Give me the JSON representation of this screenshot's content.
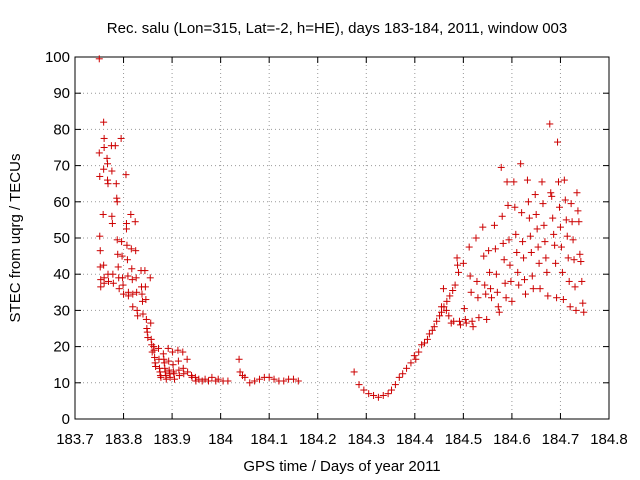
{
  "chart_data": {
    "type": "scatter",
    "title": "Rec. salu (Lon=315, Lat=-2, h=HE), days 183-184, 2011, window 003",
    "xlabel": "GPS time / Days of year 2011",
    "ylabel": "STEC from uqrg / TECUs",
    "xlim": [
      183.7,
      184.8
    ],
    "ylim": [
      0,
      100
    ],
    "xticks": [
      183.7,
      183.8,
      183.9,
      184,
      184.1,
      184.2,
      184.3,
      184.4,
      184.5,
      184.6,
      184.7,
      184.8
    ],
    "xtick_labels": [
      "183.7",
      "183.8",
      "183.9",
      "184",
      "184.1",
      "184.2",
      "184.3",
      "184.4",
      "184.5",
      "184.6",
      "184.7",
      "184.8"
    ],
    "yticks": [
      0,
      10,
      20,
      30,
      40,
      50,
      60,
      70,
      80,
      90,
      100
    ],
    "ytick_labels": [
      "0",
      "10",
      "20",
      "30",
      "40",
      "50",
      "60",
      "70",
      "80",
      "90",
      "100"
    ],
    "grid": true,
    "marker": "+",
    "color": "#cc0000",
    "series": [
      {
        "name": "STEC",
        "points": [
          [
            183.75,
            99.5
          ],
          [
            183.75,
            73.5
          ],
          [
            183.751,
            67.0
          ],
          [
            183.751,
            50.5
          ],
          [
            183.752,
            46.5
          ],
          [
            183.752,
            42.0
          ],
          [
            183.753,
            38.5
          ],
          [
            183.753,
            36.5
          ],
          [
            183.759,
            82.0
          ],
          [
            183.76,
            77.5
          ],
          [
            183.76,
            75.0
          ],
          [
            183.759,
            69.0
          ],
          [
            183.758,
            56.5
          ],
          [
            183.759,
            42.5
          ],
          [
            183.76,
            39.0
          ],
          [
            183.76,
            37.5
          ],
          [
            183.766,
            72.0
          ],
          [
            183.767,
            70.5
          ],
          [
            183.767,
            66.0
          ],
          [
            183.768,
            65.0
          ],
          [
            183.768,
            40.0
          ],
          [
            183.769,
            38.0
          ],
          [
            183.775,
            75.5
          ],
          [
            183.776,
            68.5
          ],
          [
            183.776,
            56.0
          ],
          [
            183.777,
            54.0
          ],
          [
            183.778,
            40.0
          ],
          [
            183.779,
            37.5
          ],
          [
            183.783,
            75.5
          ],
          [
            183.785,
            65.0
          ],
          [
            183.786,
            61.0
          ],
          [
            183.787,
            60.0
          ],
          [
            183.787,
            49.5
          ],
          [
            183.788,
            45.5
          ],
          [
            183.789,
            42.0
          ],
          [
            183.79,
            39.0
          ],
          [
            183.791,
            36.0
          ],
          [
            183.795,
            77.5
          ],
          [
            183.796,
            49.0
          ],
          [
            183.797,
            45.0
          ],
          [
            183.798,
            39.0
          ],
          [
            183.799,
            37.0
          ],
          [
            183.8,
            34.5
          ],
          [
            183.805,
            67.5
          ],
          [
            183.806,
            54.0
          ],
          [
            183.806,
            52.5
          ],
          [
            183.807,
            48.0
          ],
          [
            183.808,
            44.0
          ],
          [
            183.809,
            39.5
          ],
          [
            183.81,
            35.0
          ],
          [
            183.81,
            34.0
          ],
          [
            183.815,
            56.5
          ],
          [
            183.816,
            47.0
          ],
          [
            183.817,
            41.5
          ],
          [
            183.818,
            38.5
          ],
          [
            183.819,
            34.5
          ],
          [
            183.819,
            31.0
          ],
          [
            183.824,
            54.5
          ],
          [
            183.825,
            46.5
          ],
          [
            183.826,
            39.0
          ],
          [
            183.827,
            35.0
          ],
          [
            183.828,
            30.0
          ],
          [
            183.829,
            28.5
          ],
          [
            183.836,
            41.0
          ],
          [
            183.837,
            36.5
          ],
          [
            183.838,
            34.5
          ],
          [
            183.839,
            32.5
          ],
          [
            183.84,
            29.0
          ],
          [
            183.844,
            41.0
          ],
          [
            183.845,
            36.5
          ],
          [
            183.846,
            33.0
          ],
          [
            183.847,
            27.5
          ],
          [
            183.848,
            25.0
          ],
          [
            183.849,
            24.0
          ],
          [
            183.85,
            22.5
          ],
          [
            183.855,
            39.0
          ],
          [
            183.856,
            26.5
          ],
          [
            183.857,
            22.0
          ],
          [
            183.858,
            20.5
          ],
          [
            183.859,
            18.5
          ],
          [
            183.862,
            20.0
          ],
          [
            183.863,
            19.0
          ],
          [
            183.864,
            17.0
          ],
          [
            183.865,
            15.5
          ],
          [
            183.866,
            14.5
          ],
          [
            183.872,
            19.5
          ],
          [
            183.873,
            16.5
          ],
          [
            183.874,
            14.0
          ],
          [
            183.875,
            13.0
          ],
          [
            183.876,
            12.0
          ],
          [
            183.877,
            11.5
          ],
          [
            183.882,
            18.0
          ],
          [
            183.883,
            16.5
          ],
          [
            183.884,
            15.5
          ],
          [
            183.885,
            14.0
          ],
          [
            183.886,
            13.0
          ],
          [
            183.887,
            12.0
          ],
          [
            183.888,
            11.0
          ],
          [
            183.892,
            19.5
          ],
          [
            183.893,
            16.0
          ],
          [
            183.894,
            13.5
          ],
          [
            183.895,
            12.5
          ],
          [
            183.896,
            11.5
          ],
          [
            183.901,
            18.5
          ],
          [
            183.902,
            15.0
          ],
          [
            183.903,
            13.0
          ],
          [
            183.904,
            12.5
          ],
          [
            183.905,
            11.0
          ],
          [
            183.912,
            19.0
          ],
          [
            183.913,
            16.0
          ],
          [
            183.914,
            13.5
          ],
          [
            183.915,
            12.0
          ],
          [
            183.922,
            18.5
          ],
          [
            183.923,
            14.0
          ],
          [
            183.924,
            12.5
          ],
          [
            183.931,
            16.5
          ],
          [
            183.932,
            13.0
          ],
          [
            183.94,
            12.0
          ],
          [
            183.941,
            11.5
          ],
          [
            183.948,
            11.5
          ],
          [
            183.949,
            10.5
          ],
          [
            183.955,
            11.0
          ],
          [
            183.962,
            10.5
          ],
          [
            183.968,
            11.0
          ],
          [
            183.975,
            10.5
          ],
          [
            183.982,
            11.5
          ],
          [
            183.99,
            10.5
          ],
          [
            183.995,
            11.0
          ],
          [
            184.005,
            10.5
          ],
          [
            184.015,
            10.5
          ],
          [
            184.04,
            13.0
          ],
          [
            184.038,
            16.5
          ],
          [
            184.045,
            12.0
          ],
          [
            184.05,
            11.5
          ],
          [
            184.06,
            10.0
          ],
          [
            184.07,
            10.5
          ],
          [
            184.08,
            11.0
          ],
          [
            184.09,
            11.5
          ],
          [
            184.1,
            11.5
          ],
          [
            184.11,
            11.0
          ],
          [
            184.12,
            10.5
          ],
          [
            184.13,
            10.5
          ],
          [
            184.14,
            11.0
          ],
          [
            184.15,
            11.0
          ],
          [
            184.16,
            10.5
          ],
          [
            184.275,
            13.0
          ],
          [
            184.285,
            9.5
          ],
          [
            184.295,
            8.0
          ],
          [
            184.305,
            7.0
          ],
          [
            184.315,
            6.5
          ],
          [
            184.325,
            6.0
          ],
          [
            184.335,
            6.5
          ],
          [
            184.345,
            7.0
          ],
          [
            184.352,
            8.0
          ],
          [
            184.36,
            9.5
          ],
          [
            184.368,
            11.5
          ],
          [
            184.375,
            12.5
          ],
          [
            184.383,
            14.0
          ],
          [
            184.392,
            15.5
          ],
          [
            184.399,
            17.5
          ],
          [
            184.402,
            16.5
          ],
          [
            184.408,
            18.5
          ],
          [
            184.414,
            20.5
          ],
          [
            184.42,
            21.0
          ],
          [
            184.426,
            22.0
          ],
          [
            184.43,
            23.5
          ],
          [
            184.436,
            24.5
          ],
          [
            184.44,
            25.5
          ],
          [
            184.445,
            27.0
          ],
          [
            184.451,
            28.5
          ],
          [
            184.455,
            29.5
          ],
          [
            184.46,
            31.0
          ],
          [
            184.466,
            32.5
          ],
          [
            184.472,
            34.0
          ],
          [
            184.478,
            35.5
          ],
          [
            184.483,
            37.0
          ],
          [
            184.459,
            36.0
          ],
          [
            184.455,
            31.0
          ],
          [
            184.465,
            30.0
          ],
          [
            184.47,
            28.5
          ],
          [
            184.475,
            26.5
          ],
          [
            184.48,
            27.0
          ],
          [
            184.487,
            44.5
          ],
          [
            184.488,
            42.5
          ],
          [
            184.49,
            40.5
          ],
          [
            184.492,
            27.0
          ],
          [
            184.494,
            26.0
          ],
          [
            184.5,
            43.0
          ],
          [
            184.502,
            30.5
          ],
          [
            184.504,
            27.5
          ],
          [
            184.506,
            26.5
          ],
          [
            184.512,
            47.5
          ],
          [
            184.514,
            39.5
          ],
          [
            184.516,
            35.0
          ],
          [
            184.518,
            27.0
          ],
          [
            184.52,
            25.5
          ],
          [
            184.526,
            50.0
          ],
          [
            184.528,
            38.0
          ],
          [
            184.53,
            33.5
          ],
          [
            184.532,
            28.0
          ],
          [
            184.54,
            53.0
          ],
          [
            184.542,
            45.0
          ],
          [
            184.544,
            37.0
          ],
          [
            184.546,
            34.5
          ],
          [
            184.548,
            27.5
          ],
          [
            184.552,
            46.5
          ],
          [
            184.554,
            40.5
          ],
          [
            184.556,
            36.0
          ],
          [
            184.558,
            33.5
          ],
          [
            184.564,
            53.5
          ],
          [
            184.566,
            47.0
          ],
          [
            184.568,
            40.0
          ],
          [
            184.57,
            35.0
          ],
          [
            184.572,
            31.0
          ],
          [
            184.574,
            29.5
          ],
          [
            184.578,
            69.5
          ],
          [
            184.58,
            56.0
          ],
          [
            184.582,
            48.5
          ],
          [
            184.584,
            44.0
          ],
          [
            184.586,
            37.5
          ],
          [
            184.588,
            33.5
          ],
          [
            184.59,
            65.5
          ],
          [
            184.592,
            59.0
          ],
          [
            184.594,
            49.5
          ],
          [
            184.596,
            42.5
          ],
          [
            184.598,
            38.0
          ],
          [
            184.6,
            32.5
          ],
          [
            184.604,
            65.5
          ],
          [
            184.606,
            58.5
          ],
          [
            184.608,
            51.0
          ],
          [
            184.61,
            46.0
          ],
          [
            184.612,
            40.5
          ],
          [
            184.614,
            37.0
          ],
          [
            184.618,
            70.5
          ],
          [
            184.62,
            57.0
          ],
          [
            184.622,
            49.0
          ],
          [
            184.624,
            44.5
          ],
          [
            184.626,
            38.5
          ],
          [
            184.628,
            34.5
          ],
          [
            184.632,
            66.0
          ],
          [
            184.634,
            60.0
          ],
          [
            184.636,
            55.5
          ],
          [
            184.638,
            50.5
          ],
          [
            184.64,
            46.0
          ],
          [
            184.642,
            39.5
          ],
          [
            184.644,
            36.0
          ],
          [
            184.648,
            62.0
          ],
          [
            184.65,
            56.5
          ],
          [
            184.652,
            52.5
          ],
          [
            184.654,
            47.5
          ],
          [
            184.656,
            43.0
          ],
          [
            184.658,
            36.0
          ],
          [
            184.662,
            65.5
          ],
          [
            184.664,
            59.5
          ],
          [
            184.666,
            53.5
          ],
          [
            184.668,
            49.0
          ],
          [
            184.67,
            44.5
          ],
          [
            184.672,
            40.5
          ],
          [
            184.674,
            34.0
          ],
          [
            184.678,
            81.5
          ],
          [
            184.68,
            62.5
          ],
          [
            184.682,
            61.5
          ],
          [
            184.684,
            55.5
          ],
          [
            184.686,
            51.0
          ],
          [
            184.688,
            48.0
          ],
          [
            184.69,
            43.0
          ],
          [
            184.692,
            33.5
          ],
          [
            184.694,
            76.5
          ],
          [
            184.696,
            65.5
          ],
          [
            184.698,
            58.5
          ],
          [
            184.7,
            53.0
          ],
          [
            184.702,
            47.5
          ],
          [
            184.704,
            40.5
          ],
          [
            184.706,
            33.0
          ],
          [
            184.708,
            66.0
          ],
          [
            184.71,
            60.5
          ],
          [
            184.712,
            55.0
          ],
          [
            184.714,
            50.5
          ],
          [
            184.716,
            44.5
          ],
          [
            184.718,
            38.0
          ],
          [
            184.72,
            31.0
          ],
          [
            184.722,
            59.5
          ],
          [
            184.724,
            54.5
          ],
          [
            184.726,
            49.5
          ],
          [
            184.728,
            44.0
          ],
          [
            184.73,
            36.5
          ],
          [
            184.732,
            30.0
          ],
          [
            184.734,
            62.5
          ],
          [
            184.736,
            57.5
          ],
          [
            184.738,
            54.5
          ],
          [
            184.74,
            45.5
          ],
          [
            184.742,
            43.5
          ],
          [
            184.744,
            38.0
          ],
          [
            184.746,
            32.0
          ],
          [
            184.748,
            29.5
          ]
        ]
      }
    ]
  }
}
